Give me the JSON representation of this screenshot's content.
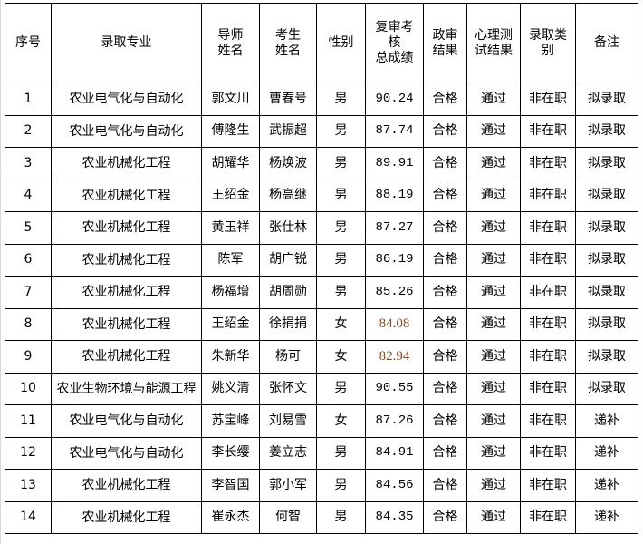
{
  "headers": {
    "no": "序号",
    "major": "录取专业",
    "advisor": "导师\n姓名",
    "student": "考生\n姓名",
    "gender": "性别",
    "score": "复审考\n核\n总成绩",
    "political": "政审\n结果",
    "psych": "心理测\n试结果",
    "type": "录取类\n别",
    "remark": "备注"
  },
  "rows": [
    {
      "no": "1",
      "major": "农业电气化与自动化",
      "advisor": "郭文川",
      "student": "曹春号",
      "gender": "男",
      "score": "90.24",
      "political": "合格",
      "psych": "通过",
      "type": "非在职",
      "remark": "拟录取"
    },
    {
      "no": "2",
      "major": "农业电气化与自动化",
      "advisor": "傅隆生",
      "student": "武振超",
      "gender": "男",
      "score": "87.74",
      "political": "合格",
      "psych": "通过",
      "type": "非在职",
      "remark": "拟录取"
    },
    {
      "no": "3",
      "major": "农业机械化工程",
      "advisor": "胡耀华",
      "student": "杨焕波",
      "gender": "男",
      "score": "89.91",
      "political": "合格",
      "psych": "通过",
      "type": "非在职",
      "remark": "拟录取"
    },
    {
      "no": "4",
      "major": "农业机械化工程",
      "advisor": "王绍金",
      "student": "杨高继",
      "gender": "男",
      "score": "88.19",
      "political": "合格",
      "psych": "通过",
      "type": "非在职",
      "remark": "拟录取"
    },
    {
      "no": "5",
      "major": "农业机械化工程",
      "advisor": "黄玉祥",
      "student": "张仕林",
      "gender": "男",
      "score": "87.27",
      "political": "合格",
      "psych": "通过",
      "type": "非在职",
      "remark": "拟录取"
    },
    {
      "no": "6",
      "major": "农业机械化工程",
      "advisor": "陈军",
      "student": "胡广锐",
      "gender": "男",
      "score": "86.19",
      "political": "合格",
      "psych": "通过",
      "type": "非在职",
      "remark": "拟录取"
    },
    {
      "no": "7",
      "major": "农业机械化工程",
      "advisor": "杨福增",
      "student": "胡周勋",
      "gender": "男",
      "score": "85.26",
      "political": "合格",
      "psych": "通过",
      "type": "非在职",
      "remark": "拟录取"
    },
    {
      "no": "8",
      "major": "农业机械化工程",
      "advisor": "王绍金",
      "student": "徐捐捐",
      "gender": "女",
      "score": "84.08",
      "political": "合格",
      "psych": "通过",
      "type": "非在职",
      "remark": "拟录取"
    },
    {
      "no": "9",
      "major": "农业机械化工程",
      "advisor": "朱新华",
      "student": "杨可",
      "gender": "女",
      "score": "82.94",
      "political": "合格",
      "psych": "通过",
      "type": "非在职",
      "remark": "拟录取"
    },
    {
      "no": "10",
      "major": "农业生物环境与能源工程",
      "advisor": "姚义清",
      "student": "张怀文",
      "gender": "男",
      "score": "90.55",
      "political": "合格",
      "psych": "通过",
      "type": "非在职",
      "remark": "拟录取"
    },
    {
      "no": "11",
      "major": "农业电气化与自动化",
      "advisor": "苏宝峰",
      "student": "刘易雪",
      "gender": "女",
      "score": "87.26",
      "political": "合格",
      "psych": "通过",
      "type": "非在职",
      "remark": "递补"
    },
    {
      "no": "12",
      "major": "农业电气化与自动化",
      "advisor": "李长缨",
      "student": "姜立志",
      "gender": "男",
      "score": "84.91",
      "political": "合格",
      "psych": "通过",
      "type": "非在职",
      "remark": "递补"
    },
    {
      "no": "13",
      "major": "农业机械化工程",
      "advisor": "李智国",
      "student": "郭小军",
      "gender": "男",
      "score": "84.56",
      "political": "合格",
      "psych": "通过",
      "type": "非在职",
      "remark": "递补"
    },
    {
      "no": "14",
      "major": "农业机械化工程",
      "advisor": "崔永杰",
      "student": "何智",
      "gender": "男",
      "score": "84.35",
      "political": "合格",
      "psych": "通过",
      "type": "非在职",
      "remark": "递补"
    }
  ],
  "colors": {
    "highlight_score": "#7a4e2e"
  }
}
